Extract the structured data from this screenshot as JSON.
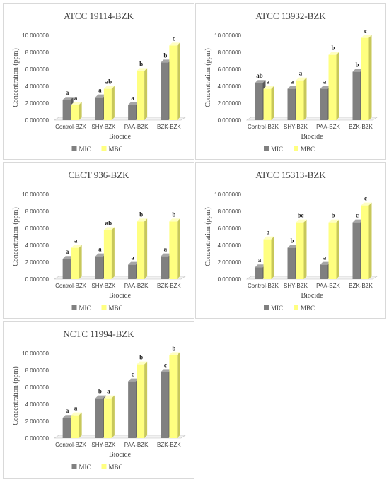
{
  "colors": {
    "mic": "#808080",
    "mic_top": "#a6a6a6",
    "mic_side": "#5a5a5a",
    "mbc": "#ffff80",
    "mbc_top": "#ffffc4",
    "mbc_side": "#c8c85a",
    "axis": "#bfbfbf"
  },
  "chart_data": [
    {
      "type": "bar",
      "title": "ATCC 19114-BZK",
      "xlabel": "Biocide",
      "ylabel": "Concentration (ppm)",
      "ylim": [
        0,
        10
      ],
      "yticks": [
        "0.000000",
        "2.000000",
        "4.000000",
        "6.000000",
        "8.000000",
        "10.000000"
      ],
      "categories": [
        "Control-BZK",
        "SHY-BZK",
        "PAA-BZK",
        "BZK-BZK"
      ],
      "series": [
        {
          "name": "MIC",
          "values": [
            2.4,
            2.7,
            1.8,
            6.8
          ],
          "labels": [
            "a",
            "a",
            "a",
            "b"
          ]
        },
        {
          "name": "MBC",
          "values": [
            1.8,
            3.7,
            5.8,
            8.8
          ],
          "labels": [
            "a",
            "ab",
            "b",
            "c"
          ]
        }
      ]
    },
    {
      "type": "bar",
      "title": "ATCC 13932-BZK",
      "xlabel": "Biocide",
      "ylabel": "Concentration (ppm)",
      "ylim": [
        0,
        10
      ],
      "yticks": [
        "0.000000",
        "2.000000",
        "4.000000",
        "6.000000",
        "8.000000",
        "10.000000"
      ],
      "categories": [
        "Control-BZK",
        "SHY-BZK",
        "PAA-BZK",
        "BZK-BZK"
      ],
      "series": [
        {
          "name": "MIC",
          "values": [
            4.4,
            3.7,
            3.7,
            5.7
          ],
          "labels": [
            "ab",
            "a",
            "a",
            "b"
          ]
        },
        {
          "name": "MBC",
          "values": [
            3.7,
            4.7,
            7.7,
            9.7
          ],
          "labels": [
            "a",
            "a",
            "b",
            "c"
          ]
        }
      ]
    },
    {
      "type": "bar",
      "title": "CECT 936-BZK",
      "xlabel": "Biocide",
      "ylabel": "Concentration (ppm)",
      "ylim": [
        0,
        10
      ],
      "yticks": [
        "0.000000",
        "2.000000",
        "4.000000",
        "6.000000",
        "8.000000",
        "10.000000"
      ],
      "categories": [
        "Control-BZK",
        "SHY-BZK",
        "PAA-BZK",
        "BZK-BZK"
      ],
      "series": [
        {
          "name": "MIC",
          "values": [
            2.4,
            2.7,
            1.7,
            2.7
          ],
          "labels": [
            "a",
            "a",
            "a",
            "a"
          ]
        },
        {
          "name": "MBC",
          "values": [
            3.7,
            5.8,
            6.8,
            6.8
          ],
          "labels": [
            "a",
            "ab",
            "b",
            "b"
          ]
        }
      ]
    },
    {
      "type": "bar",
      "title": "ATCC 15313-BZK",
      "xlabel": "Biocide",
      "ylabel": "Concentration (ppm)",
      "ylim": [
        0,
        10
      ],
      "yticks": [
        "0.000000",
        "2.000000",
        "4.000000",
        "6.000000",
        "8.000000",
        "10.000000"
      ],
      "categories": [
        "Control-BZK",
        "SHY-BZK",
        "PAA-BZK",
        "BZK-BZK"
      ],
      "series": [
        {
          "name": "MIC",
          "values": [
            1.4,
            3.7,
            1.7,
            6.7
          ],
          "labels": [
            "a",
            "b",
            "a",
            "c"
          ]
        },
        {
          "name": "MBC",
          "values": [
            4.7,
            6.7,
            6.7,
            8.7
          ],
          "labels": [
            "a",
            "bc",
            "b",
            "c"
          ]
        }
      ]
    },
    {
      "type": "bar",
      "title": "NCTC 11994-BZK",
      "xlabel": "Biocide",
      "ylabel": "Concentration (ppm)",
      "ylim": [
        0,
        10
      ],
      "yticks": [
        "0.000000",
        "2.000000",
        "4.000000",
        "6.000000",
        "8.000000",
        "10.000000"
      ],
      "categories": [
        "Control-BZK",
        "SHY-BZK",
        "PAA-BZK",
        "BZK-BZK"
      ],
      "series": [
        {
          "name": "MIC",
          "values": [
            2.4,
            4.7,
            6.7,
            7.8
          ],
          "labels": [
            "a",
            "b",
            "c",
            "c"
          ]
        },
        {
          "name": "MBC",
          "values": [
            2.7,
            4.7,
            8.7,
            9.8
          ],
          "labels": [
            "a",
            "a",
            "b",
            "b"
          ]
        }
      ]
    }
  ]
}
